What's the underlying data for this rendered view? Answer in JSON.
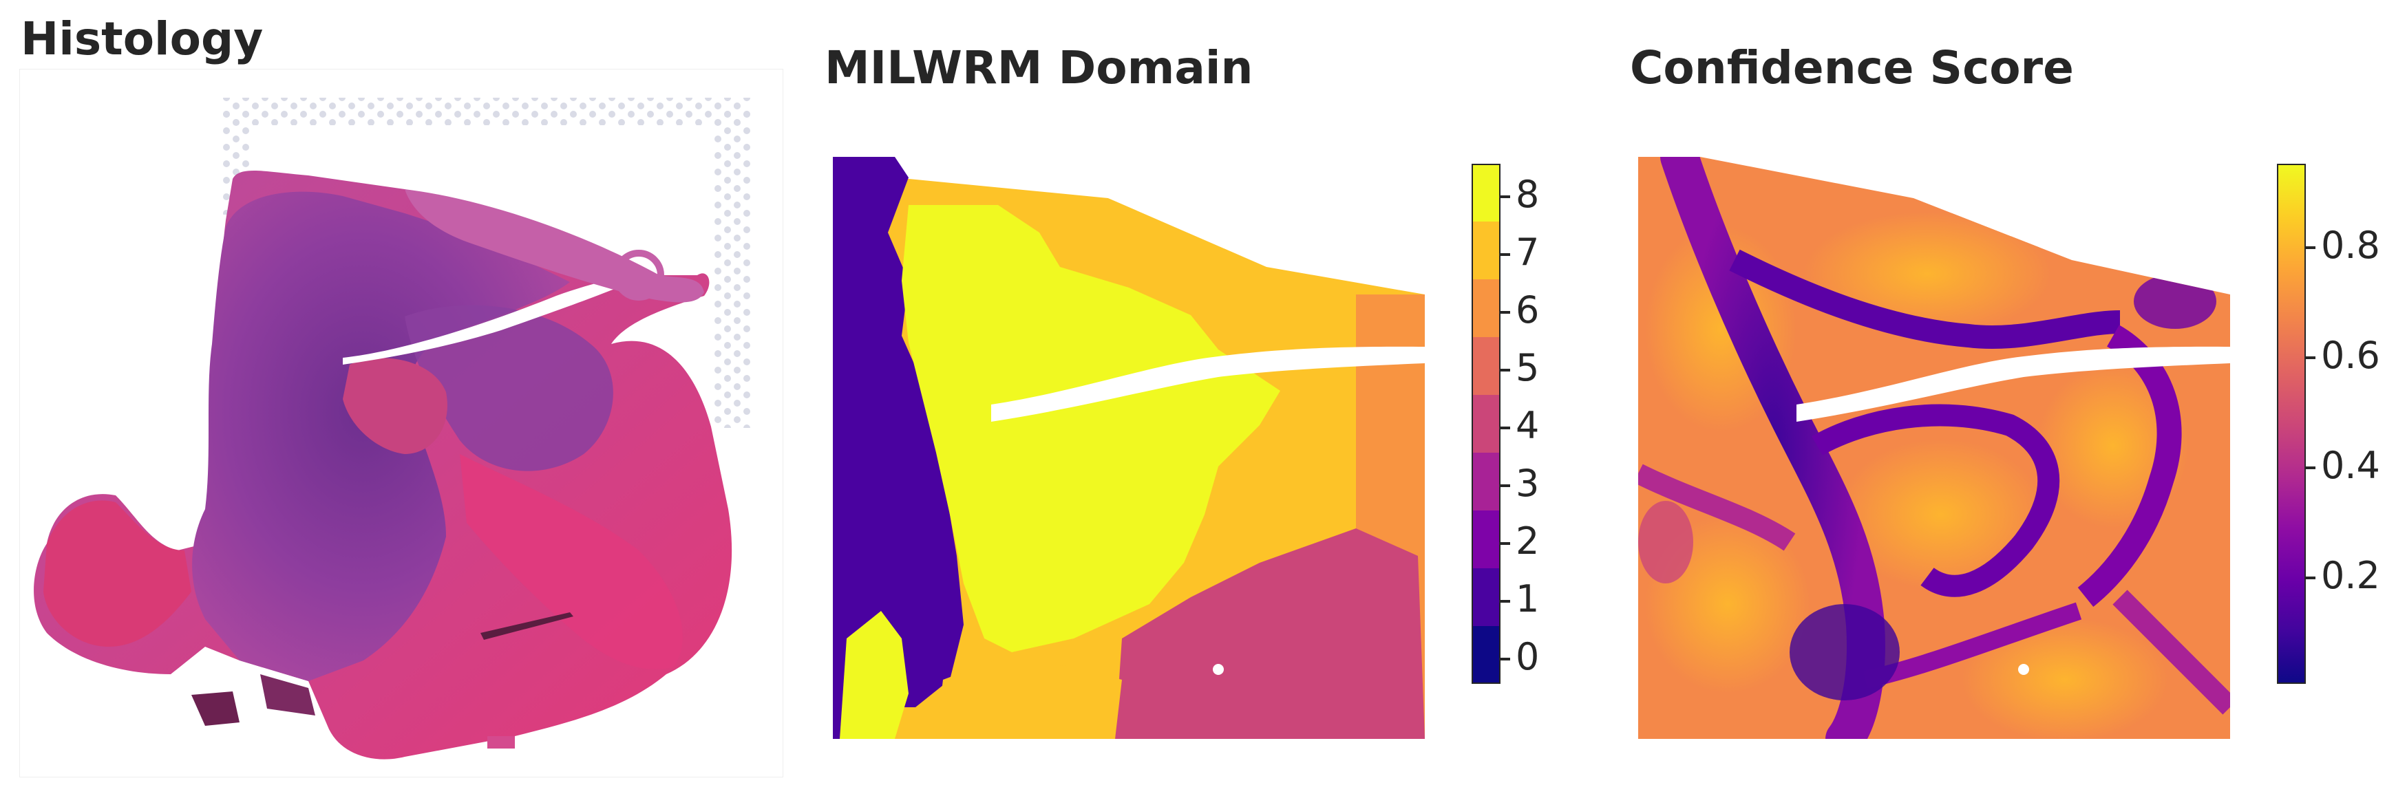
{
  "panels": {
    "histology": {
      "title": "Histology"
    },
    "domain": {
      "title": "MILWRM Domain",
      "colorbar": {
        "ticks": [
          "0",
          "1",
          "2",
          "3",
          "4",
          "5",
          "6",
          "7",
          "8"
        ],
        "colors": [
          "#0d0887",
          "#41049d",
          "#6a00a8",
          "#8f0da4",
          "#b12a90",
          "#cc4778",
          "#e16462",
          "#f2844b",
          "#fca636",
          "#fcce25",
          "#f0f921"
        ]
      }
    },
    "confidence": {
      "title": "Confidence Score",
      "colorbar": {
        "ticks": [
          "0.2",
          "0.4",
          "0.6",
          "0.8"
        ],
        "range": [
          0.0,
          0.94
        ],
        "tick_values": [
          0.2,
          0.4,
          0.6,
          0.8
        ]
      }
    }
  },
  "colors": {
    "domain_0": "#0d0887",
    "domain_1": "#4a02a0",
    "domain_2": "#7e03a8",
    "domain_3": "#a82296",
    "domain_4": "#cb4679",
    "domain_5": "#e66c5c",
    "domain_6": "#f89441",
    "domain_7": "#fdc328",
    "domain_8": "#f0f921",
    "histology_stroma": "#d63a7e",
    "histology_tumor": "#8a3c9c",
    "histology_dense": "#6b2d8a"
  }
}
